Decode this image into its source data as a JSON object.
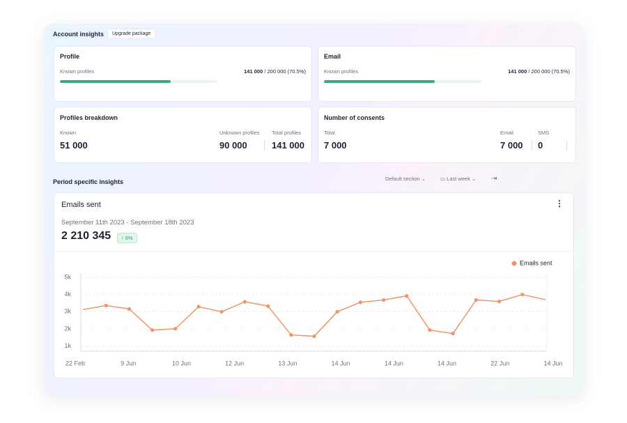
{
  "header": {
    "title": "Account insights",
    "button": "Upgrade package"
  },
  "profile": {
    "title": "Profile",
    "label": "Known profiles",
    "known": "141 000",
    "total": "200 000",
    "percent": "(70.5%)",
    "progress": 70.5
  },
  "email": {
    "title": "Email",
    "label": "Known profiles",
    "known": "141 000",
    "total": "200 000",
    "percent": "(70.5%)",
    "progress": 70.5
  },
  "breakdown": {
    "title": "Profiles breakdown",
    "known_label": "Known",
    "known": "51 000",
    "unknown_label": "Unknown profiles",
    "unknown": "90 000",
    "total_label": "Total profiles",
    "total": "141 000"
  },
  "consents": {
    "title": "Number of consents",
    "total_label": "Total",
    "total": "7 000",
    "email_label": "Email",
    "email": "7 000",
    "sms_label": "SMS",
    "sms": "0"
  },
  "period": {
    "title": "Period specific insights",
    "section": "Default section",
    "range": "Last week"
  },
  "card": {
    "title": "Emails sent",
    "dates": "September 11th 2023 - September 18th 2023",
    "total": "2 210 345",
    "change": "6%"
  },
  "chart_data": {
    "type": "line",
    "x_labels": [
      "22 Feb",
      "9 Jun",
      "10 Jun",
      "12 Jun",
      "13 Jun",
      "14 Jun",
      "14 Jun",
      "14 Jun",
      "22 Jun",
      "14 Jun"
    ],
    "series": [
      {
        "name": "Emails sent",
        "color": "#f0956a",
        "values": [
          3120,
          3360,
          3160,
          1930,
          2010,
          3290,
          3000,
          3580,
          3330,
          1650,
          1570,
          3000,
          3550,
          3680,
          3920,
          1930,
          1730,
          3680,
          3600,
          4000,
          3700
        ]
      }
    ],
    "ylim": [
      700,
      5000
    ],
    "yticks": [
      {
        "value": 1000,
        "label": "1k"
      },
      {
        "value": 2000,
        "label": "2k"
      },
      {
        "value": 3000,
        "label": "3k"
      },
      {
        "value": 4000,
        "label": "4k"
      },
      {
        "value": 5000,
        "label": "5k"
      }
    ],
    "grid": true,
    "legend": "top-right"
  }
}
